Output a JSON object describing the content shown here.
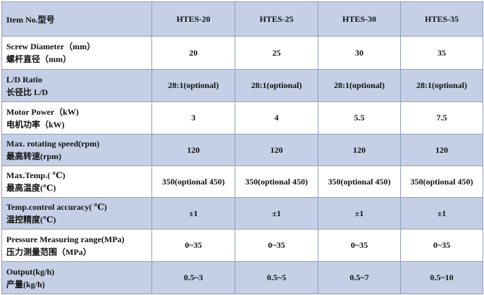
{
  "table": {
    "header": {
      "label": "Item No.型号",
      "models": [
        "HTES-20",
        "HTES-25",
        "HTES-30",
        "HTES-35"
      ]
    },
    "rows": [
      {
        "label_en": "Screw Diameter（mm）",
        "label_zh": "螺杆直径（mm）",
        "values": [
          "20",
          "25",
          "30",
          "35"
        ]
      },
      {
        "label_en": "L/D Ratio",
        "label_zh": "长径比 L/D",
        "values": [
          "28:1(optional)",
          "28:1(optional)",
          "28:1(optional)",
          "28:1(optional)"
        ]
      },
      {
        "label_en": "Motor Power（kW)",
        "label_zh": "电机功率（kW)",
        "values": [
          "3",
          "4",
          "5.5",
          "7.5"
        ]
      },
      {
        "label_en": "Max. rotating speed(rpm)",
        "label_zh": "最高转速(rpm)",
        "values": [
          "120",
          "120",
          "120",
          "120"
        ]
      },
      {
        "label_en": "Max.Temp.( ℃)",
        "label_zh": "最高温度(℃)",
        "values": [
          "350(optional 450)",
          "350(optional 450)",
          "350(optional 450)",
          "350(optional 450)"
        ]
      },
      {
        "label_en": "Temp.control accuracy( ℃)",
        "label_zh": "温控精度(℃)",
        "values": [
          "±1",
          "±1",
          "±1",
          "±1"
        ]
      },
      {
        "label_en": "Pressure Measuring range(MPa)",
        "label_zh": "压力测量范围（MPa）",
        "values": [
          "0~35",
          "0~35",
          "0~35",
          "0~35"
        ]
      },
      {
        "label_en": "Output(kg/h)",
        "label_zh": "产量(kg/h)",
        "values": [
          "0.5~3",
          "0.5~5",
          "0.5~7",
          "0.5~10"
        ]
      }
    ]
  },
  "colors": {
    "shaded_row": "#c5d0e6",
    "border": "#8f9db8",
    "text": "#111111"
  }
}
